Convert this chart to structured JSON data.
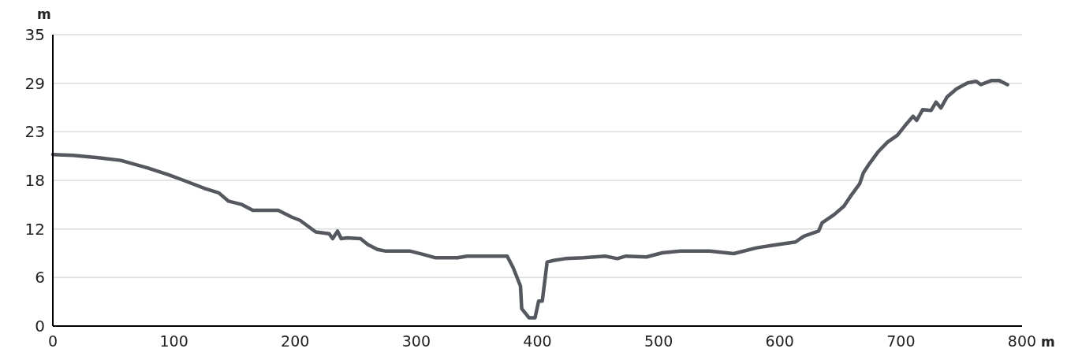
{
  "chart_data": {
    "type": "line",
    "xlabel": "m",
    "ylabel": "m",
    "xlim": [
      0,
      800
    ],
    "xticks": [
      0,
      100,
      200,
      300,
      400,
      500,
      600,
      700,
      800
    ],
    "ylim": [
      0,
      35
    ],
    "yticks": [
      0,
      {
        "value": 5.833,
        "label": "6"
      },
      {
        "value": 11.667,
        "label": "12"
      },
      {
        "value": 17.5,
        "label": "18"
      },
      {
        "value": 23.333,
        "label": "23"
      },
      {
        "value": 29.167,
        "label": "29"
      },
      35
    ],
    "grid": "y",
    "line_style": "solid",
    "marker": "none",
    "series": [
      {
        "color": "#55585f",
        "x": [
          0,
          17,
          39,
          56,
          78,
          95,
          108,
          126,
          137,
          145,
          156,
          165,
          186,
          197,
          204,
          217,
          228,
          231,
          235,
          238,
          243,
          254,
          260,
          268,
          275,
          295,
          306,
          316,
          334,
          342,
          375,
          380,
          386,
          387,
          393,
          398,
          401,
          404,
          408,
          414,
          423,
          438,
          456,
          466,
          473,
          490,
          503,
          518,
          529,
          542,
          562,
          581,
          594,
          613,
          620,
          632,
          635,
          645,
          653,
          658,
          662,
          666,
          669,
          674,
          681,
          689,
          697,
          703,
          710,
          713,
          718,
          725,
          729,
          733,
          738,
          746,
          755,
          762,
          766,
          775,
          781,
          788
        ],
        "values": [
          20.6,
          20.5,
          20.2,
          19.9,
          19.0,
          18.2,
          17.5,
          16.5,
          16.0,
          15.0,
          14.6,
          13.9,
          13.9,
          13.1,
          12.7,
          11.3,
          11.1,
          10.5,
          11.4,
          10.5,
          10.6,
          10.5,
          9.8,
          9.2,
          9.0,
          9.0,
          8.6,
          8.2,
          8.2,
          8.4,
          8.4,
          7.0,
          4.8,
          2.1,
          1.0,
          1.0,
          3.0,
          3.0,
          7.7,
          7.9,
          8.1,
          8.2,
          8.4,
          8.1,
          8.4,
          8.3,
          8.8,
          9.0,
          9.0,
          9.0,
          8.7,
          9.4,
          9.7,
          10.1,
          10.8,
          11.4,
          12.4,
          13.4,
          14.4,
          15.5,
          16.3,
          17.1,
          18.4,
          19.5,
          20.9,
          22.1,
          22.9,
          24.0,
          25.2,
          24.7,
          26.0,
          25.9,
          26.9,
          26.2,
          27.5,
          28.5,
          29.2,
          29.4,
          29.0,
          29.5,
          29.5,
          29.0
        ]
      }
    ]
  }
}
